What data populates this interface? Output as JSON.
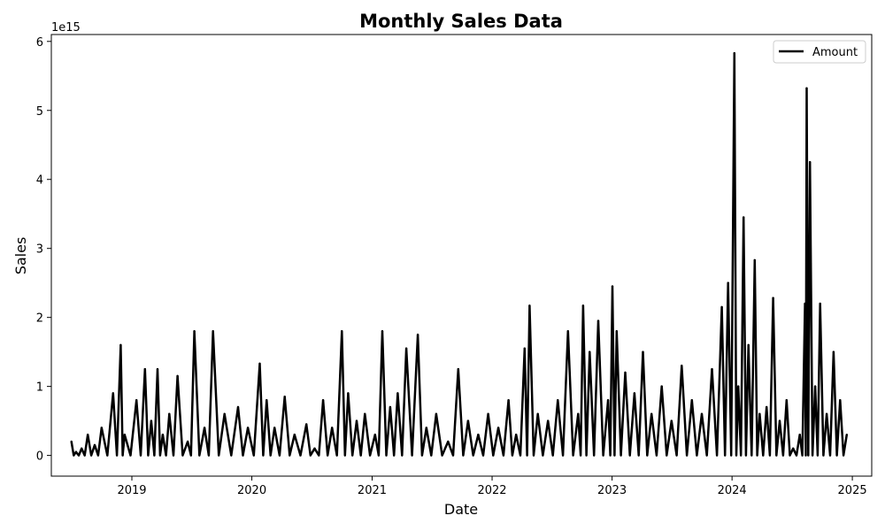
{
  "chart_data": {
    "type": "line",
    "title": "Monthly Sales Data",
    "xlabel": "Date",
    "ylabel": "Sales",
    "y_offset_text": "1e15",
    "y_unit_multiplier": 1000000000000000.0,
    "xlim": [
      "2018-05-01",
      "2025-03-01"
    ],
    "ylim": [
      -0.3,
      6.1
    ],
    "x_ticks": [
      "2019-01-01",
      "2020-01-01",
      "2021-01-01",
      "2022-01-01",
      "2023-01-01",
      "2024-01-01",
      "2025-01-01"
    ],
    "x_tick_labels": [
      "2019",
      "2020",
      "2021",
      "2022",
      "2023",
      "2024",
      "2025"
    ],
    "y_ticks": [
      0,
      1,
      2,
      3,
      4,
      5,
      6
    ],
    "y_tick_labels": [
      "0",
      "1",
      "2",
      "3",
      "4",
      "5",
      "6"
    ],
    "grid": false,
    "legend_position": "top-right",
    "colors": {
      "line": "#000000"
    },
    "series": [
      {
        "name": "Amount",
        "x": [
          "2018-07-01",
          "2018-07-15",
          "2018-08-01",
          "2018-08-20",
          "2018-09-10",
          "2018-10-01",
          "2018-11-05",
          "2018-11-28",
          "2018-12-10",
          "2019-01-15",
          "2019-02-10",
          "2019-03-01",
          "2019-03-20",
          "2019-04-05",
          "2019-04-25",
          "2019-05-20",
          "2019-06-20",
          "2019-07-10",
          "2019-08-10",
          "2019-09-05",
          "2019-10-10",
          "2019-11-20",
          "2019-12-20",
          "2020-01-25",
          "2020-02-15",
          "2020-03-10",
          "2020-04-10",
          "2020-05-10",
          "2020-06-15",
          "2020-07-10",
          "2020-08-05",
          "2020-09-01",
          "2020-10-01",
          "2020-10-20",
          "2020-11-15",
          "2020-12-10",
          "2021-01-10",
          "2021-02-01",
          "2021-02-25",
          "2021-03-20",
          "2021-04-15",
          "2021-05-20",
          "2021-06-15",
          "2021-07-15",
          "2021-08-20",
          "2021-09-20",
          "2021-10-20",
          "2021-11-20",
          "2021-12-20",
          "2022-01-20",
          "2022-02-20",
          "2022-03-15",
          "2022-04-10",
          "2022-04-25",
          "2022-05-20",
          "2022-06-20",
          "2022-07-20",
          "2022-08-20",
          "2022-09-20",
          "2022-10-05",
          "2022-10-25",
          "2022-11-20",
          "2022-12-20",
          "2023-01-02",
          "2023-01-15",
          "2023-02-10",
          "2023-03-10",
          "2023-04-05",
          "2023-05-01",
          "2023-06-01",
          "2023-07-01",
          "2023-08-01",
          "2023-09-01",
          "2023-10-01",
          "2023-11-01",
          "2023-12-01",
          "2023-12-20",
          "2024-01-08",
          "2024-01-20",
          "2024-02-05",
          "2024-02-20",
          "2024-03-10",
          "2024-03-25",
          "2024-04-15",
          "2024-05-05",
          "2024-05-25",
          "2024-06-15",
          "2024-07-05",
          "2024-07-25",
          "2024-08-10",
          "2024-08-15",
          "2024-08-25",
          "2024-09-10",
          "2024-09-25",
          "2024-10-15",
          "2024-11-05",
          "2024-11-25",
          "2024-12-15"
        ],
        "values": [
          0.2,
          0.05,
          0.1,
          0.3,
          0.15,
          0.4,
          0.9,
          1.6,
          0.3,
          0.8,
          1.25,
          0.5,
          1.25,
          0.3,
          0.6,
          1.15,
          0.2,
          1.8,
          0.4,
          1.8,
          0.6,
          0.7,
          0.4,
          1.33,
          0.8,
          0.4,
          0.85,
          0.3,
          0.45,
          0.1,
          0.8,
          0.4,
          1.8,
          0.9,
          0.5,
          0.6,
          0.3,
          1.8,
          0.7,
          0.9,
          1.55,
          1.75,
          0.4,
          0.6,
          0.2,
          1.25,
          0.5,
          0.3,
          0.6,
          0.4,
          0.8,
          0.3,
          1.55,
          2.17,
          0.6,
          0.5,
          0.8,
          1.8,
          0.6,
          2.17,
          1.5,
          1.95,
          0.8,
          2.45,
          1.8,
          1.2,
          0.9,
          1.5,
          0.6,
          1.0,
          0.5,
          1.3,
          0.8,
          0.6,
          1.25,
          2.15,
          2.5,
          5.83,
          1.0,
          3.45,
          1.6,
          2.83,
          0.6,
          0.7,
          2.28,
          0.5,
          0.8,
          0.1,
          0.3,
          2.2,
          5.32,
          4.25,
          1.0,
          2.2,
          0.6,
          1.5,
          0.8,
          0.3
        ]
      }
    ]
  }
}
